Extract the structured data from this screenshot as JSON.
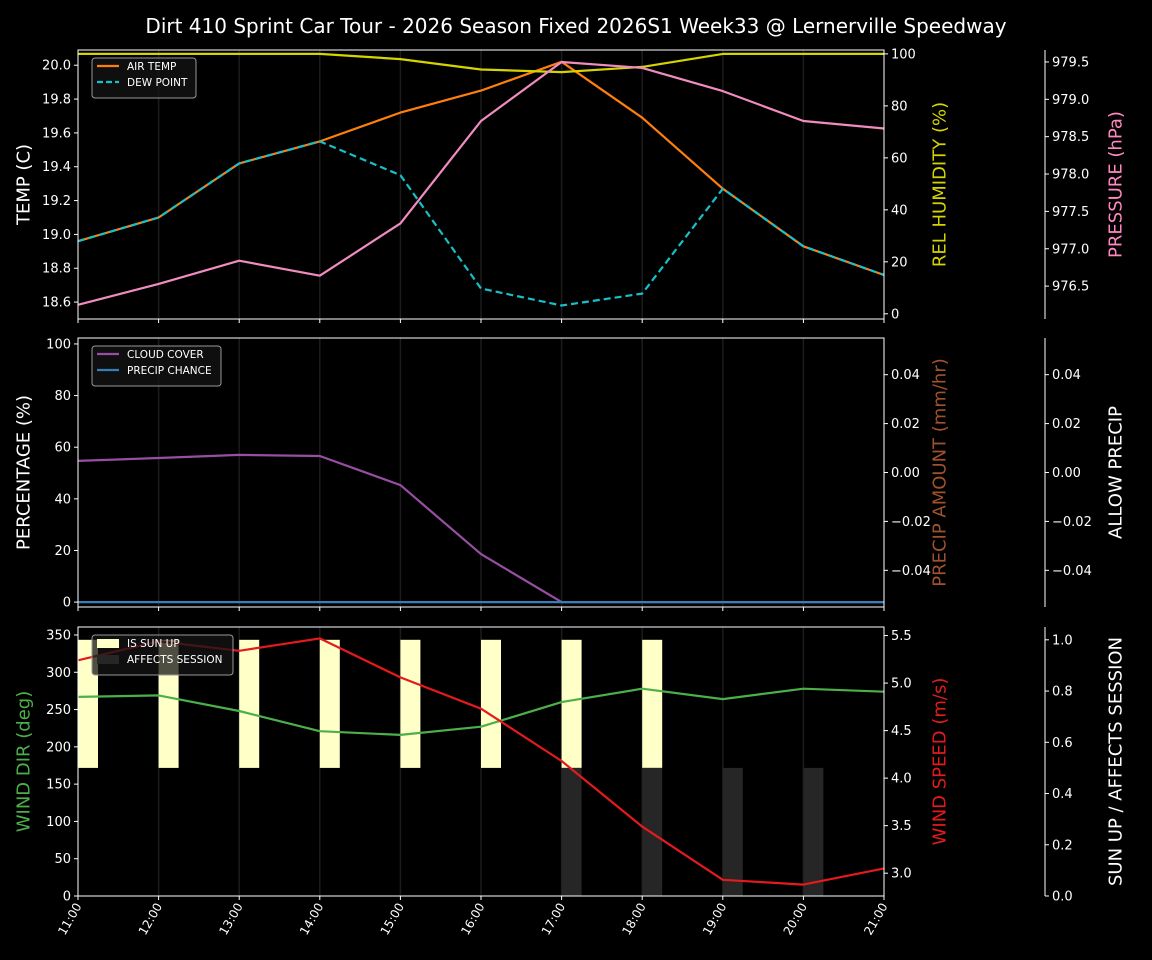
{
  "title": "Dirt 410 Sprint Car Tour - 2026 Season Fixed 2026S1 Week33 @ Lernerville Speedway",
  "chart_data": [
    {
      "type": "line",
      "x": [
        "11:00",
        "12:00",
        "13:00",
        "14:00",
        "15:00",
        "16:00",
        "17:00",
        "18:00",
        "19:00",
        "20:00",
        "21:00"
      ],
      "axes": {
        "left": {
          "label": "TEMP (C)",
          "color": "#ffffff",
          "range": [
            18.5,
            20.09
          ],
          "ticks": [
            18.6,
            18.8,
            19.0,
            19.2,
            19.4,
            19.6,
            19.8,
            20.0
          ],
          "tick_labels": [
            "18.6",
            "18.8",
            "19.0",
            "19.2",
            "19.4",
            "19.6",
            "19.8",
            "20.0"
          ]
        },
        "right": {
          "label": "REL HUMIDITY (%)",
          "color": "#d4d400",
          "range": [
            -2,
            101.5
          ],
          "ticks": [
            0,
            20,
            40,
            60,
            80,
            100
          ],
          "tick_labels": [
            "0",
            "20",
            "40",
            "60",
            "80",
            "100"
          ]
        },
        "right2": {
          "label": "PRESSURE (hPa)",
          "color": "#ff88c0",
          "range": [
            976.06,
            979.66
          ],
          "ticks": [
            976.5,
            977.0,
            977.5,
            978.0,
            978.5,
            979.0,
            979.5
          ],
          "tick_labels": [
            "976.5",
            "977.0",
            "977.5",
            "978.0",
            "978.5",
            "979.0",
            "979.5"
          ]
        }
      },
      "series": [
        {
          "name": "AIR TEMP",
          "axis": "left",
          "color": "#ff7f0e",
          "style": "solid",
          "legend": true,
          "values": [
            18.96,
            19.1,
            19.42,
            19.55,
            19.72,
            19.85,
            20.02,
            19.69,
            19.27,
            18.93,
            18.76
          ]
        },
        {
          "name": "DEW POINT",
          "axis": "left",
          "color": "#17c0c8",
          "style": "dashed",
          "legend": true,
          "values": [
            18.96,
            19.1,
            19.42,
            19.55,
            19.35,
            18.68,
            18.58,
            18.65,
            19.27,
            18.93,
            18.76
          ]
        },
        {
          "axis": "right",
          "color": "#d4d400",
          "style": "solid",
          "legend": false,
          "values": [
            100,
            100,
            100,
            100,
            98,
            94,
            93,
            95,
            100,
            100,
            100
          ]
        },
        {
          "axis": "right2",
          "color": "#f08cc0",
          "style": "solid",
          "legend": false,
          "values": [
            976.25,
            976.53,
            976.84,
            976.64,
            977.34,
            978.71,
            979.5,
            979.42,
            979.11,
            978.71,
            978.61
          ]
        }
      ],
      "grid": "vertical",
      "legend_position": "top-left"
    },
    {
      "type": "line",
      "x": [
        "11:00",
        "12:00",
        "13:00",
        "14:00",
        "15:00",
        "16:00",
        "17:00",
        "18:00",
        "19:00",
        "20:00",
        "21:00"
      ],
      "axes": {
        "left": {
          "label": "PERCENTAGE (%)",
          "color": "#ffffff",
          "range": [
            -1.9,
            102.3
          ],
          "ticks": [
            0,
            20,
            40,
            60,
            80,
            100
          ],
          "tick_labels": [
            "0",
            "20",
            "40",
            "60",
            "80",
            "100"
          ]
        },
        "right": {
          "label": "PRECIP AMOUNT (mm/hr)",
          "color": "#a0522d",
          "range": [
            -0.055,
            0.055
          ],
          "ticks": [
            -0.04,
            -0.02,
            0,
            0.02,
            0.04
          ],
          "tick_labels": [
            "−0.04",
            "−0.02",
            "0.00",
            "0.02",
            "0.04"
          ]
        },
        "right2": {
          "label": "ALLOW PRECIP",
          "color": "#ffffff",
          "range": [
            -0.055,
            0.055
          ],
          "ticks": [
            -0.04,
            -0.02,
            0,
            0.02,
            0.04
          ],
          "tick_labels": [
            "−0.04",
            "−0.02",
            "0.00",
            "0.02",
            "0.04"
          ]
        }
      },
      "series": [
        {
          "name": "CLOUD COVER",
          "axis": "left",
          "color": "#984ea3",
          "style": "solid",
          "legend": true,
          "values": [
            54.7,
            55.8,
            57.0,
            56.6,
            45.3,
            18.6,
            0,
            0,
            0,
            0,
            0
          ]
        },
        {
          "name": "PRECIP CHANCE",
          "axis": "left",
          "color": "#377eb8",
          "style": "solid",
          "legend": true,
          "values": [
            0,
            0,
            0,
            0,
            0,
            0,
            0,
            0,
            0,
            0,
            0
          ]
        }
      ],
      "grid": "vertical",
      "legend_position": "top-left"
    },
    {
      "type": "line",
      "x": [
        "11:00",
        "12:00",
        "13:00",
        "14:00",
        "15:00",
        "16:00",
        "17:00",
        "18:00",
        "19:00",
        "20:00",
        "21:00"
      ],
      "axes": {
        "left": {
          "label": "WIND DIR (deg)",
          "color": "#4daf4a",
          "range": [
            0,
            360.7
          ],
          "ticks": [
            0,
            50,
            100,
            150,
            200,
            250,
            300,
            350
          ],
          "tick_labels": [
            "0",
            "50",
            "100",
            "150",
            "200",
            "250",
            "300",
            "350"
          ]
        },
        "right": {
          "label": "WIND SPEED (m/s)",
          "color": "#e41a1c",
          "range": [
            2.76,
            5.59
          ],
          "ticks": [
            3.0,
            3.5,
            4.0,
            4.5,
            5.0,
            5.5
          ],
          "tick_labels": [
            "3.0",
            "3.5",
            "4.0",
            "4.5",
            "5.0",
            "5.5"
          ]
        },
        "right2": {
          "label": "SUN UP / AFFECTS SESSION",
          "color": "#ffffff",
          "range": [
            0,
            1.05
          ],
          "ticks": [
            0,
            0.2,
            0.4,
            0.6,
            0.8,
            1.0
          ],
          "tick_labels": [
            "0.0",
            "0.2",
            "0.4",
            "0.6",
            "0.8",
            "1.0"
          ]
        }
      },
      "bars": [
        {
          "name": "IS SUN UP",
          "axis": "right2",
          "color": "#ffffc8",
          "values": [
            1,
            1,
            1,
            1,
            1,
            1,
            1,
            1,
            0,
            0,
            0
          ]
        },
        {
          "name": "AFFECTS SESSION",
          "axis": "right2",
          "color": "#262626",
          "values": [
            0,
            0,
            0,
            0,
            0,
            0,
            1,
            1,
            1,
            1,
            0
          ]
        }
      ],
      "series": [
        {
          "axis": "left",
          "color": "#4daf4a",
          "style": "solid",
          "legend": false,
          "values": [
            267,
            269,
            248,
            221,
            216,
            227,
            260,
            278,
            264,
            278,
            274
          ]
        },
        {
          "axis": "right",
          "color": "#e41a1c",
          "style": "solid",
          "legend": false,
          "values": [
            5.24,
            5.44,
            5.34,
            5.47,
            5.06,
            4.73,
            4.18,
            3.49,
            2.93,
            2.88,
            3.05
          ]
        }
      ],
      "grid": "vertical",
      "legend_position": "top-left"
    }
  ]
}
